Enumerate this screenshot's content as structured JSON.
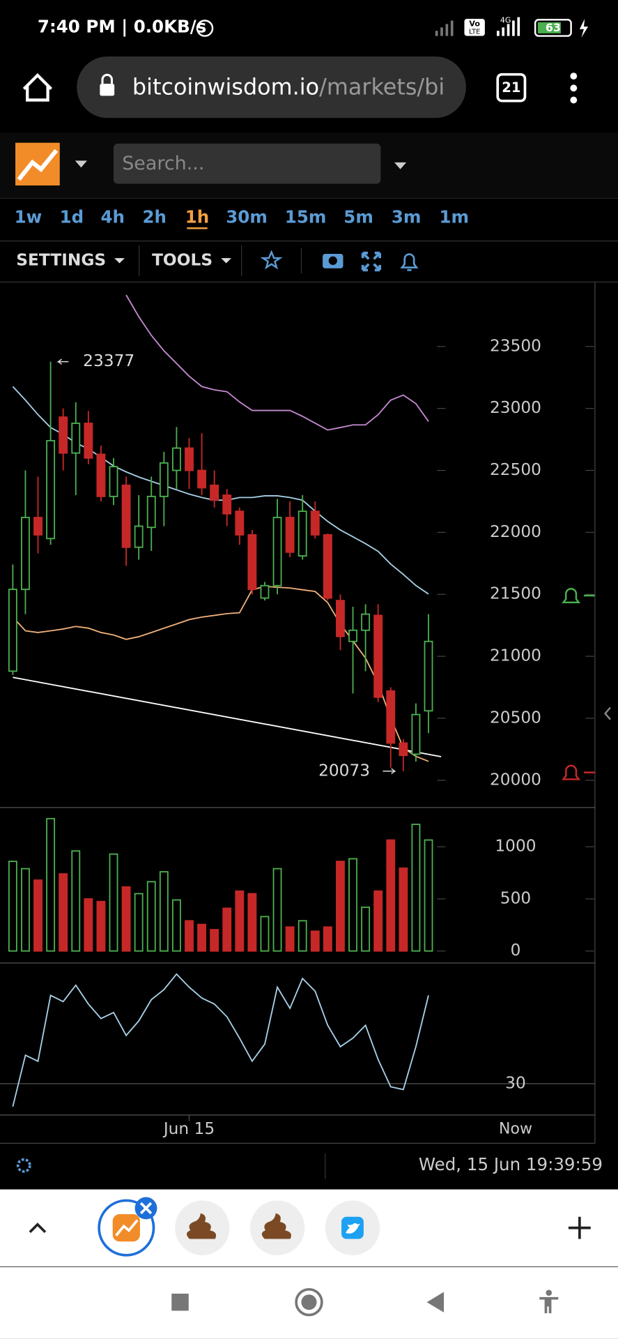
{
  "status_bar": {
    "time": "7:40 PM | 0.0KB/s",
    "volte_top": "Vo",
    "volte_bottom": "LTE",
    "network": "4G",
    "battery": "63"
  },
  "browser": {
    "url_domain": "bitcoinwisdom.io",
    "url_path": "/markets/bi",
    "tabs": "21"
  },
  "toolbar": {
    "search_placeholder": "Search...",
    "intervals": [
      {
        "label": "1w"
      },
      {
        "label": "1d"
      },
      {
        "label": "4h"
      },
      {
        "label": "2h"
      },
      {
        "label": "1h",
        "selected": true
      },
      {
        "label": "30m"
      },
      {
        "label": "15m"
      },
      {
        "label": "5m"
      },
      {
        "label": "3m"
      },
      {
        "label": "1m"
      }
    ],
    "menu": [
      "SETTINGS",
      "TOOLS"
    ]
  },
  "chart_data": [
    {
      "type": "candlestick",
      "up_color": "#4caf50",
      "down_color": "#c62828",
      "open": [
        20880,
        21540,
        22120,
        21950,
        22930,
        22640,
        22880,
        22630,
        22290,
        22380,
        21880,
        22040,
        22290,
        22500,
        22680,
        22500,
        22380,
        22300,
        22170,
        21980,
        21470,
        21570,
        22120,
        21810,
        22170,
        21980,
        21450,
        21120,
        21210,
        21330,
        20720,
        20300,
        20210,
        20560
      ],
      "high": [
        21740,
        22500,
        22450,
        23377,
        23000,
        23050,
        22980,
        22700,
        22600,
        22450,
        22300,
        22450,
        22650,
        22850,
        22760,
        22800,
        22500,
        22350,
        22200,
        22020,
        21600,
        22270,
        22250,
        22300,
        22250,
        21990,
        21500,
        21400,
        21420,
        21420,
        20750,
        20330,
        20620,
        21340
      ],
      "low": [
        20850,
        21340,
        21830,
        21900,
        22500,
        22300,
        22550,
        22250,
        22220,
        21730,
        21780,
        21850,
        22050,
        22350,
        22350,
        22300,
        22200,
        22050,
        21900,
        21500,
        21450,
        21500,
        21800,
        21780,
        21950,
        21450,
        21050,
        20700,
        20880,
        20630,
        20100,
        20073,
        20150,
        20380
      ],
      "close": [
        21540,
        22120,
        21980,
        22740,
        22640,
        22880,
        22600,
        22290,
        22530,
        21880,
        22050,
        22290,
        22560,
        22680,
        22500,
        22360,
        22260,
        22150,
        21980,
        21540,
        21570,
        22120,
        21840,
        22170,
        21980,
        21470,
        21160,
        21210,
        21340,
        20670,
        20300,
        20200,
        20530,
        21120
      ],
      "overlays": [
        {
          "color": "#c48ad0",
          "values": [
            null,
            null,
            null,
            null,
            null,
            null,
            null,
            null,
            null,
            23915,
            23740,
            23590,
            23465,
            23363,
            23260,
            23177,
            23150,
            23135,
            23053,
            22984,
            22984,
            22984,
            22984,
            22936,
            22881,
            22826,
            22846,
            22867,
            22867,
            22950,
            23067,
            23108,
            23039,
            22895
          ]
        },
        {
          "color": "#a8d0e6",
          "values": [
            23177,
            23067,
            22950,
            22846,
            22791,
            22722,
            22674,
            22605,
            22536,
            22488,
            22447,
            22412,
            22378,
            22343,
            22309,
            22281,
            22260,
            22260,
            22281,
            22281,
            22295,
            22295,
            22281,
            22260,
            22171,
            22088,
            22019,
            21964,
            21909,
            21847,
            21744,
            21661,
            21571,
            21502
          ]
        },
        {
          "color": "#f0b07a",
          "values": [
            21316,
            21206,
            21192,
            21206,
            21220,
            21241,
            21227,
            21192,
            21172,
            21137,
            21158,
            21192,
            21227,
            21261,
            21296,
            21316,
            21330,
            21344,
            21351,
            21537,
            21564,
            21557,
            21551,
            21537,
            21523,
            21433,
            21261,
            21123,
            20986,
            20779,
            20503,
            20262,
            20193,
            20152
          ]
        }
      ],
      "trendline": {
        "x": [
          0,
          34
        ],
        "y": [
          20830,
          20190
        ],
        "color": "#ffffff"
      },
      "annotations": [
        {
          "index": 3,
          "value": 23377,
          "side": "right"
        },
        {
          "index": 31,
          "value": 20073,
          "side": "left"
        }
      ],
      "ylim": [
        19780,
        24020
      ],
      "yticks": [
        20000,
        20500,
        21000,
        21500,
        22000,
        22500,
        23000,
        23500
      ]
    },
    {
      "type": "bar",
      "values": [
        860,
        790,
        680,
        1270,
        740,
        960,
        500,
        475,
        930,
        615,
        550,
        665,
        760,
        490,
        290,
        255,
        205,
        410,
        575,
        550,
        330,
        790,
        230,
        290,
        190,
        230,
        860,
        885,
        420,
        575,
        1065,
        795,
        1215,
        1065
      ],
      "ylim": [
        -115,
        1377
      ],
      "yticks": [
        0,
        500,
        1000
      ]
    },
    {
      "type": "line",
      "color": "#a8d0e6",
      "values": [
        20.5,
        41.8,
        39.3,
        66.6,
        64,
        70.8,
        63,
        57,
        59.5,
        50,
        56,
        64.8,
        69,
        75.4,
        70,
        65.5,
        63,
        57.7,
        48.9,
        39.3,
        46.4,
        70,
        61.2,
        73.6,
        68.3,
        54.2,
        45.3,
        48.9,
        54.2,
        40,
        28.7,
        27.6,
        45.3,
        66.6
      ],
      "categories": [
        null,
        null,
        null,
        null,
        null,
        null,
        null,
        null,
        null,
        null,
        null,
        null,
        null,
        null,
        "Jun 15",
        null,
        null,
        null,
        null,
        null,
        null,
        null,
        null,
        null,
        null,
        null,
        null,
        null,
        null,
        null,
        null,
        null,
        null,
        null
      ],
      "x_end_label": "Now",
      "ylim": [
        17,
        80
      ],
      "yticks": [
        30
      ]
    }
  ],
  "footer": {
    "datetime": "Wed, 15 Jun 19:39:59"
  }
}
